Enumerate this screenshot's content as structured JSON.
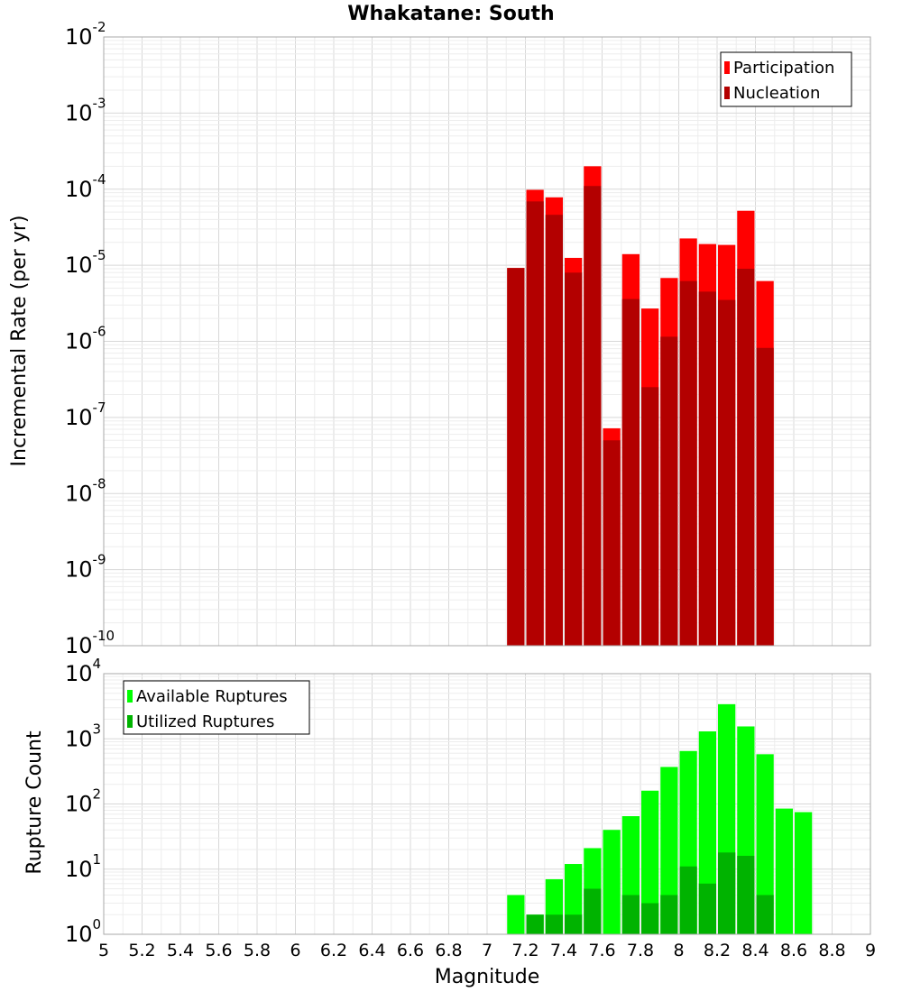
{
  "chart_data": [
    {
      "type": "bar",
      "scale": "log",
      "title": "Whakatane: South",
      "ylabel": "Incremental Rate (per yr)",
      "xlabel": "",
      "xlim": [
        5,
        9
      ],
      "ylim_exp": [
        -10,
        -2
      ],
      "y_tick_labels": [
        "10^-10",
        "10^-9",
        "10^-8",
        "10^-7",
        "10^-6",
        "10^-5",
        "10^-4",
        "10^-3",
        "10^-2"
      ],
      "bin_width": 0.1,
      "x": [
        7.15,
        7.25,
        7.35,
        7.45,
        7.55,
        7.65,
        7.75,
        7.85,
        7.95,
        8.05,
        8.15,
        8.25,
        8.35,
        8.45
      ],
      "legend": [
        "Participation",
        "Nucleation"
      ],
      "legend_position": "top-right",
      "series": [
        {
          "name": "Participation",
          "color": "#ff0000",
          "values": [
            9.2e-06,
            9.8e-05,
            7.8e-05,
            1.25e-05,
            0.0002,
            7.2e-08,
            1.4e-05,
            2.7e-06,
            6.8e-06,
            2.25e-05,
            1.9e-05,
            1.85e-05,
            5.2e-05,
            6.2e-06
          ]
        },
        {
          "name": "Nucleation",
          "color": "#b30000",
          "values": [
            9.2e-06,
            6.9e-05,
            4.6e-05,
            8e-06,
            0.00011,
            5e-08,
            3.6e-06,
            2.5e-07,
            1.15e-06,
            6.2e-06,
            4.5e-06,
            3.5e-06,
            9e-06,
            8.2e-07
          ]
        }
      ]
    },
    {
      "type": "bar",
      "scale": "log",
      "title": "",
      "ylabel": "Rupture Count",
      "xlabel": "Magnitude",
      "xlim": [
        5,
        9
      ],
      "ylim_exp": [
        0,
        4
      ],
      "y_tick_labels": [
        "10^0",
        "10^1",
        "10^2",
        "10^3",
        "10^4"
      ],
      "x_tick_labels": [
        "5",
        "5.2",
        "5.4",
        "5.6",
        "5.8",
        "6",
        "6.2",
        "6.4",
        "6.6",
        "6.8",
        "7",
        "7.2",
        "7.4",
        "7.6",
        "7.8",
        "8",
        "8.2",
        "8.4",
        "8.6",
        "8.8",
        "9"
      ],
      "bin_width": 0.1,
      "x": [
        7.15,
        7.25,
        7.35,
        7.45,
        7.55,
        7.65,
        7.75,
        7.85,
        7.95,
        8.05,
        8.15,
        8.25,
        8.35,
        8.45,
        8.55,
        8.65
      ],
      "legend": [
        "Available Ruptures",
        "Utilized Ruptures"
      ],
      "legend_position": "top-left",
      "series": [
        {
          "name": "Available Ruptures",
          "color": "#00ff00",
          "values": [
            4,
            2,
            7,
            12,
            21,
            40,
            65,
            160,
            370,
            650,
            1300,
            3400,
            1550,
            580,
            85,
            75
          ]
        },
        {
          "name": "Utilized Ruptures",
          "color": "#00b300",
          "values": [
            1,
            2,
            2,
            2,
            5,
            1,
            4,
            3,
            4,
            11,
            6,
            18,
            16,
            4,
            0,
            0
          ]
        }
      ]
    }
  ]
}
